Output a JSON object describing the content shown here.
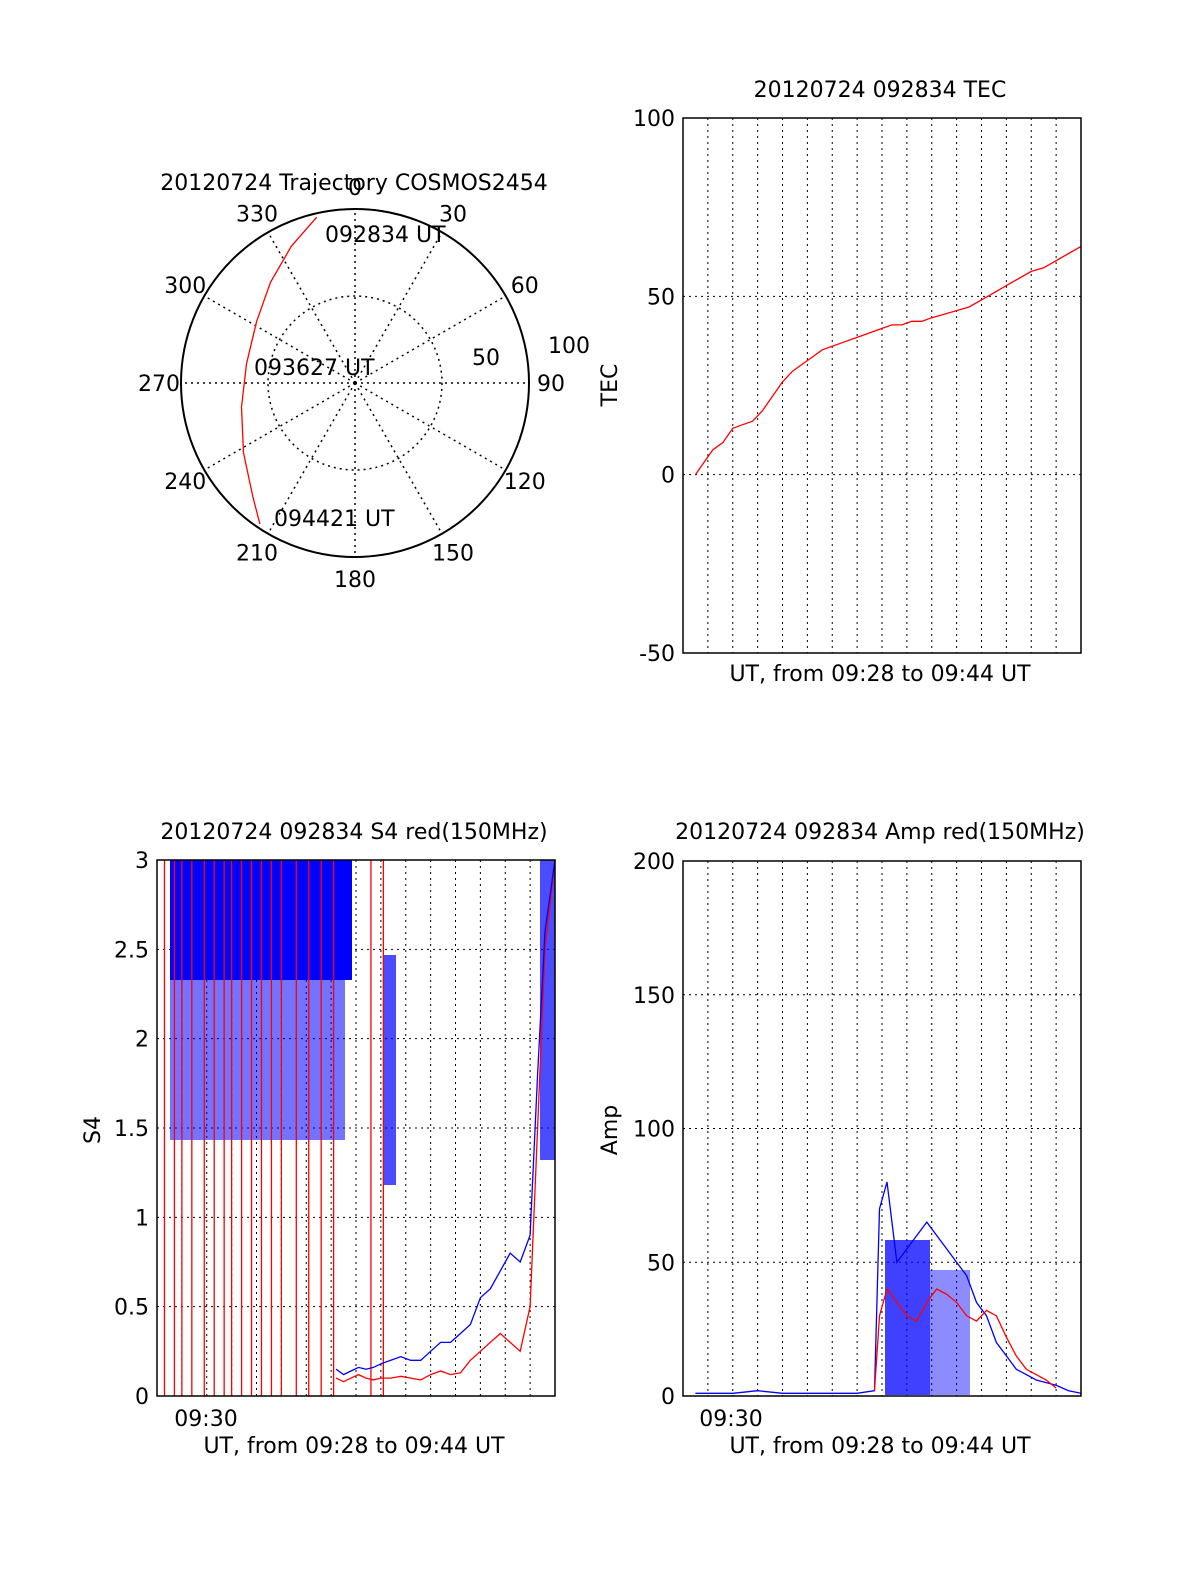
{
  "chart_data": [
    {
      "type": "polar",
      "title": "20120724 Trajectory COSMOS2454",
      "angle_labels": [
        "0",
        "30",
        "60",
        "90",
        "120",
        "150",
        "180",
        "210",
        "240",
        "270",
        "300",
        "330"
      ],
      "radius_labels": [
        "50",
        "100"
      ],
      "time_labels": [
        "092834 UT",
        "093627 UT",
        "094421 UT"
      ],
      "track_color": "#ff0000",
      "track": [
        {
          "az": 347,
          "el": 2
        },
        {
          "az": 335,
          "el": 12
        },
        {
          "az": 320,
          "el": 22
        },
        {
          "az": 302,
          "el": 30
        },
        {
          "az": 280,
          "el": 33
        },
        {
          "az": 258,
          "el": 30
        },
        {
          "az": 238,
          "el": 22
        },
        {
          "az": 222,
          "el": 11
        },
        {
          "az": 214,
          "el": 2
        }
      ]
    },
    {
      "type": "line",
      "title": "20120724 092834 TEC",
      "xlabel": "UT, from 09:28 to 09:44 UT",
      "ylabel": "TEC",
      "ylim": [
        -50,
        100
      ],
      "yticks": [
        "100",
        "50",
        "0",
        "-50"
      ],
      "grid": true,
      "series": [
        {
          "color": "#ff0000",
          "x": [
            0.5,
            0.9,
            1.2,
            1.6,
            2.0,
            2.4,
            2.8,
            3.2,
            3.6,
            4.0,
            4.4,
            4.8,
            5.2,
            5.6,
            6.0,
            6.4,
            6.8,
            7.2,
            7.6,
            8.0,
            8.4,
            8.6,
            8.8,
            9.2,
            9.6,
            10.0,
            10.5,
            11.0,
            11.5,
            12.0,
            12.5,
            13.0,
            13.5,
            14.0,
            14.5,
            15.0,
            15.5,
            16.0
          ],
          "y": [
            0,
            4,
            7,
            9,
            13,
            14,
            15,
            18,
            22,
            26,
            29,
            31,
            33,
            35,
            36,
            37,
            38,
            39,
            40,
            41,
            42,
            42,
            42,
            43,
            43,
            44,
            45,
            46,
            47,
            49,
            51,
            53,
            55,
            57,
            58,
            60,
            62,
            64
          ]
        }
      ]
    },
    {
      "type": "line",
      "title": "20120724 092834 S4 red(150MHz)",
      "xlabel": "UT, from 09:28 to 09:44 UT",
      "ylabel": "S4",
      "ylim": [
        0,
        3
      ],
      "yticks": [
        "3",
        "2.5",
        "2",
        "1.5",
        "1",
        "0.5",
        "0"
      ],
      "xtick_label": "09:30",
      "grid": true,
      "series": [
        {
          "color": "#ff0000",
          "x": [
            7.2,
            7.5,
            7.8,
            8.1,
            8.4,
            8.7,
            9.0,
            9.4,
            9.8,
            10.2,
            10.6,
            11.0,
            11.4,
            11.8,
            12.2,
            12.6,
            13.0,
            13.4,
            13.8,
            14.2,
            14.6,
            15.0,
            15.3,
            15.6,
            16.0
          ],
          "y": [
            0.1,
            0.08,
            0.1,
            0.12,
            0.1,
            0.09,
            0.1,
            0.1,
            0.11,
            0.1,
            0.09,
            0.12,
            0.14,
            0.12,
            0.13,
            0.2,
            0.25,
            0.3,
            0.35,
            0.3,
            0.25,
            0.5,
            1.5,
            2.5,
            3.0
          ]
        },
        {
          "color": "#0000ff",
          "x": [
            7.2,
            7.5,
            7.8,
            8.1,
            8.4,
            8.7,
            9.0,
            9.4,
            9.8,
            10.2,
            10.6,
            11.0,
            11.4,
            11.8,
            12.2,
            12.6,
            13.0,
            13.4,
            13.8,
            14.2,
            14.6,
            15.0,
            15.3,
            15.6,
            16.0
          ],
          "y": [
            0.15,
            0.12,
            0.14,
            0.16,
            0.15,
            0.16,
            0.18,
            0.2,
            0.22,
            0.2,
            0.2,
            0.25,
            0.3,
            0.3,
            0.35,
            0.4,
            0.55,
            0.6,
            0.7,
            0.8,
            0.75,
            0.9,
            1.8,
            2.6,
            3.0
          ]
        }
      ]
    },
    {
      "type": "line",
      "title": "20120724 092834 Amp red(150MHz)",
      "xlabel": "UT, from 09:28 to 09:44 UT",
      "ylabel": "Amp",
      "ylim": [
        0,
        200
      ],
      "yticks": [
        "200",
        "150",
        "100",
        "50",
        "0"
      ],
      "xtick_label": "09:30",
      "grid": true,
      "series": [
        {
          "color": "#0000ff",
          "x": [
            0.5,
            2.0,
            3.0,
            4.0,
            5.0,
            6.0,
            7.0,
            7.7,
            7.9,
            8.2,
            8.6,
            9.0,
            9.4,
            9.8,
            10.2,
            10.6,
            11.0,
            11.4,
            11.8,
            12.2,
            12.6,
            13.0,
            13.4,
            13.8,
            14.2,
            14.6,
            15.0,
            15.5,
            16.0
          ],
          "y": [
            1,
            1,
            2,
            1,
            1,
            1,
            1,
            2,
            70,
            80,
            50,
            55,
            60,
            65,
            60,
            55,
            50,
            45,
            35,
            30,
            20,
            15,
            10,
            8,
            6,
            5,
            4,
            2,
            1
          ]
        },
        {
          "color": "#ff0000",
          "x": [
            7.7,
            7.9,
            8.2,
            8.6,
            9.0,
            9.4,
            9.8,
            10.2,
            10.6,
            11.0,
            11.4,
            11.8,
            12.2,
            12.6,
            13.0,
            13.4,
            13.8,
            14.2,
            14.6,
            15.0
          ],
          "y": [
            2,
            30,
            40,
            35,
            30,
            28,
            35,
            40,
            38,
            35,
            30,
            28,
            32,
            30,
            22,
            15,
            10,
            8,
            6,
            3
          ]
        }
      ]
    }
  ]
}
